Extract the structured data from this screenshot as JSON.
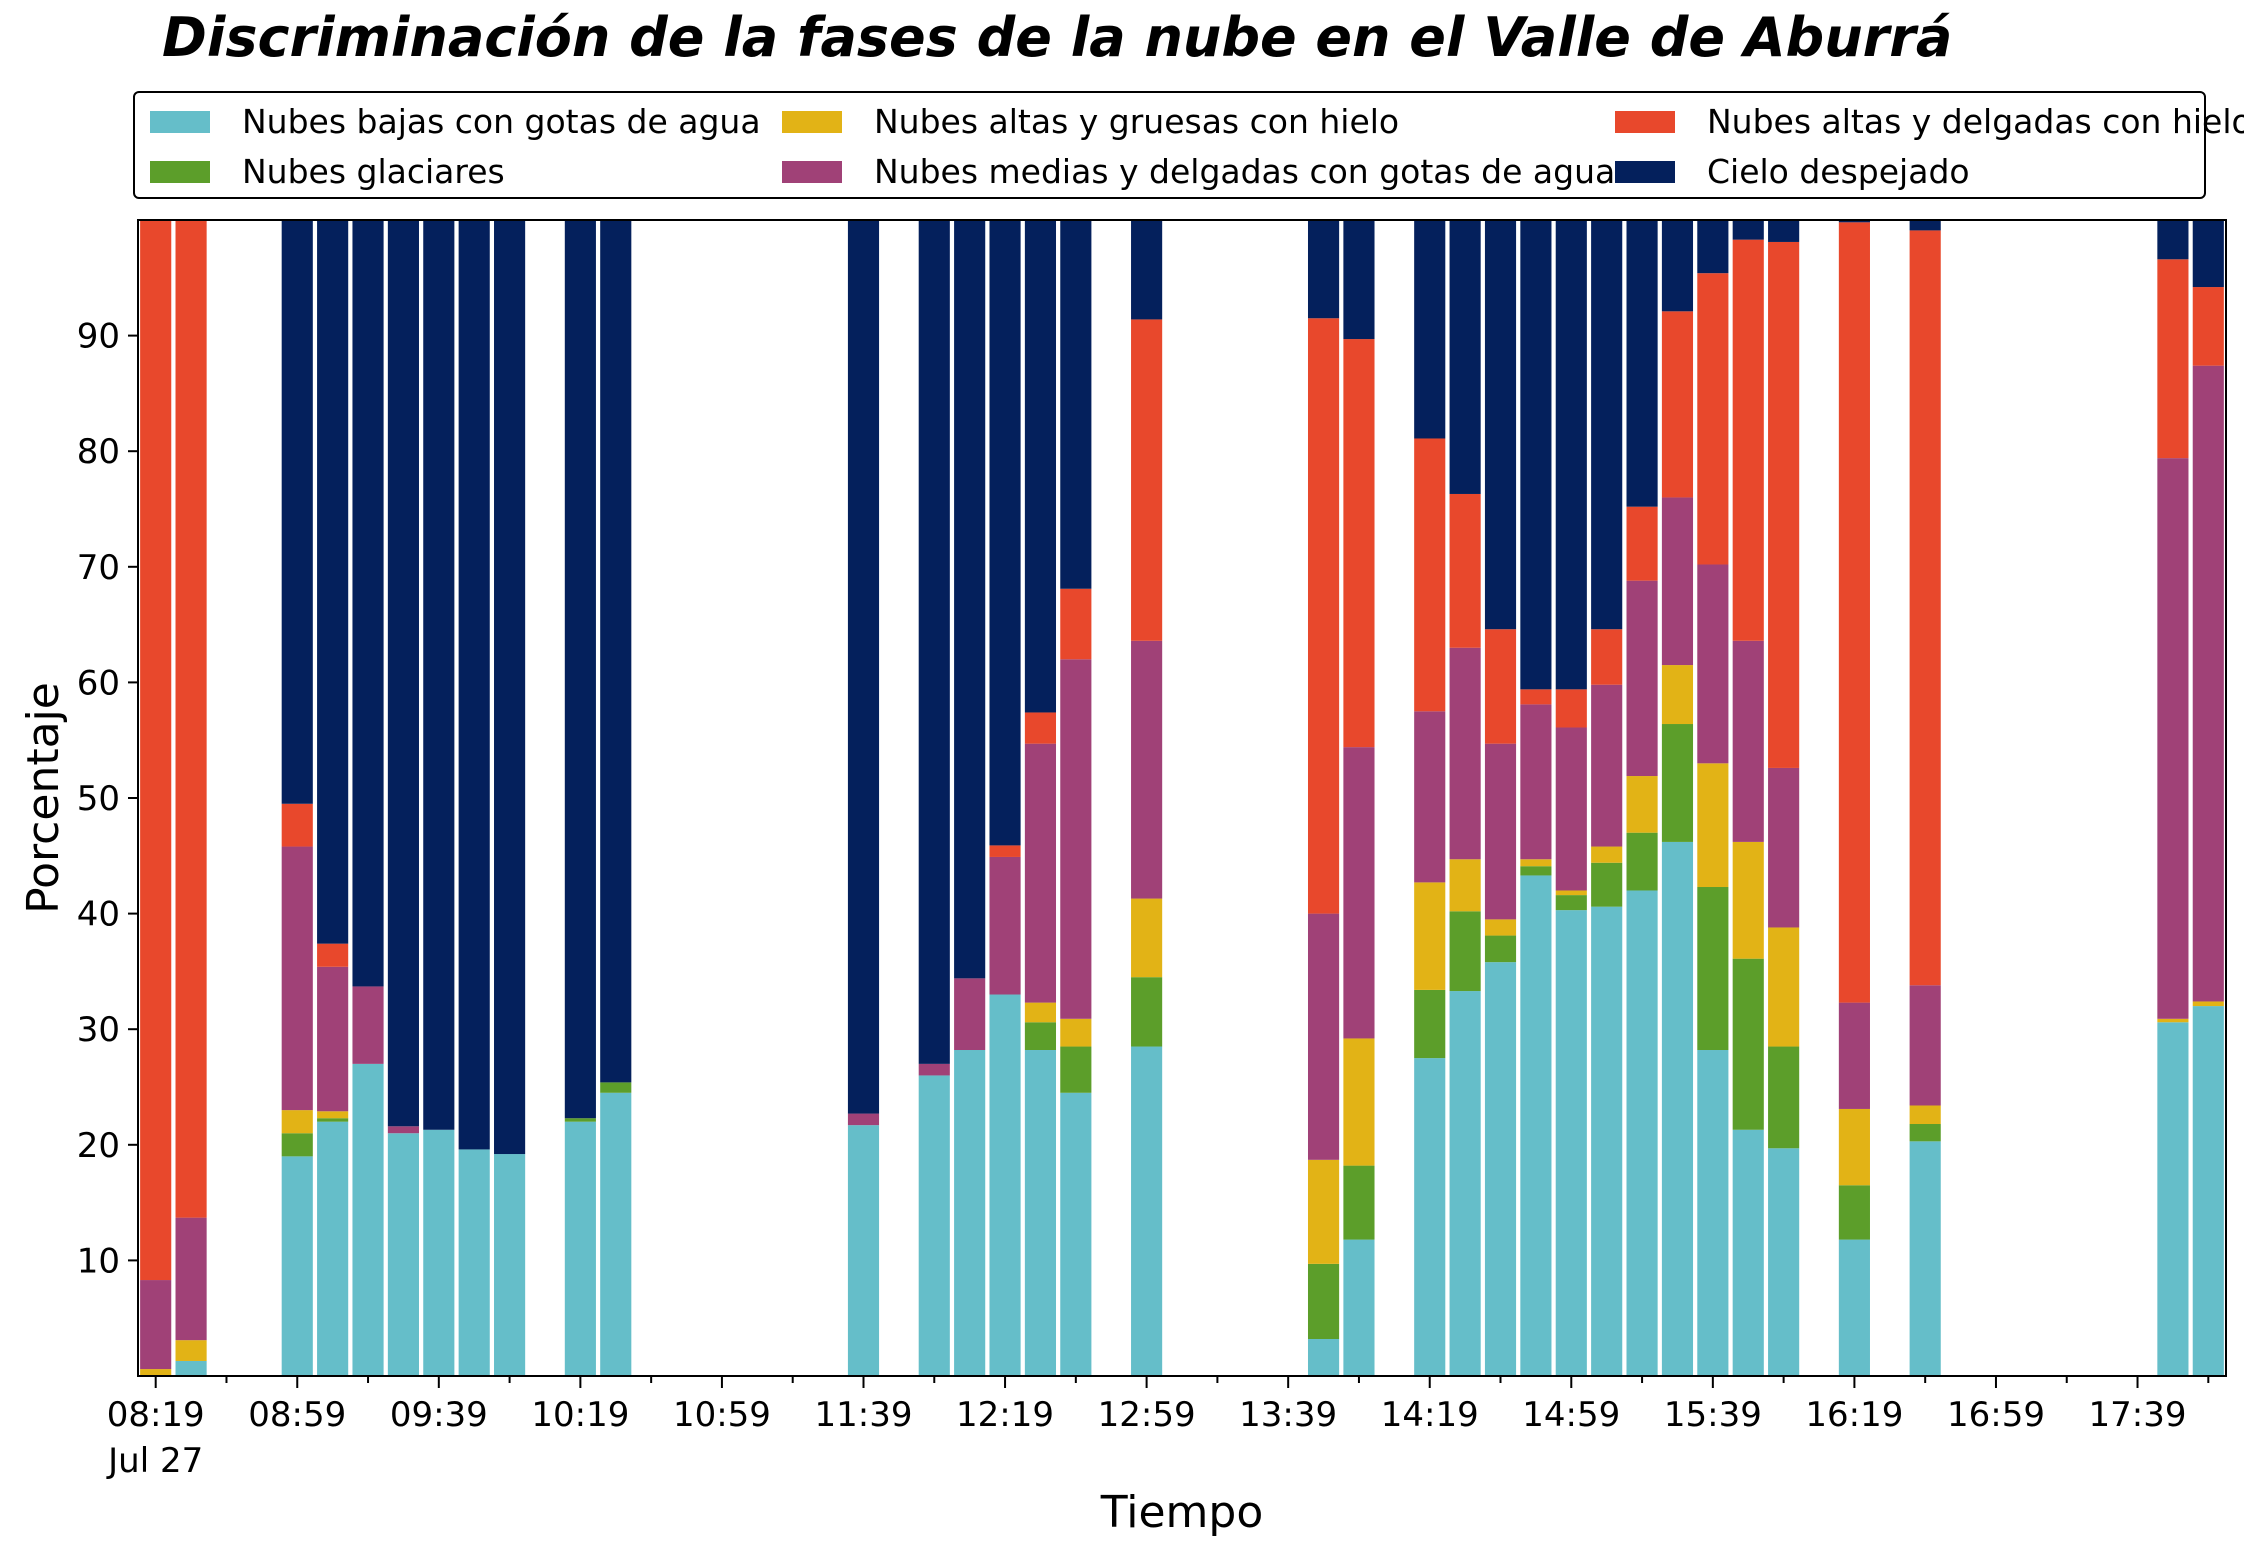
{
  "chart_data": {
    "type": "bar",
    "stacked": true,
    "title": "Discriminación de la fases de la nube en el Valle de Aburrá",
    "xlabel": "Tiempo",
    "ylabel": "Porcentaje",
    "ylim": [
      0,
      100
    ],
    "yticks": [
      10,
      20,
      30,
      40,
      50,
      60,
      70,
      80,
      90
    ],
    "x_start": "08:19",
    "x_end": "17:59",
    "bar_interval_minutes": 10,
    "xtick_labels": [
      "08:19",
      "08:59",
      "09:39",
      "10:19",
      "10:59",
      "11:39",
      "12:19",
      "12:59",
      "13:39",
      "14:19",
      "14:59",
      "15:39",
      "16:19",
      "16:59",
      "17:39"
    ],
    "xtick_sublabel": "Jul 27",
    "legend_position": "top",
    "grid": false,
    "categories": [
      "08:19",
      "08:29",
      "08:59",
      "09:09",
      "09:19",
      "09:29",
      "09:39",
      "09:49",
      "09:59",
      "10:19",
      "10:29",
      "11:39",
      "11:59",
      "12:09",
      "12:19",
      "12:29",
      "12:39",
      "12:59",
      "13:49",
      "13:59",
      "14:19",
      "14:29",
      "14:39",
      "14:49",
      "14:59",
      "15:09",
      "15:19",
      "15:29",
      "15:39",
      "15:49",
      "15:59",
      "16:19",
      "16:39",
      "17:49",
      "17:59"
    ],
    "series": [
      {
        "name": "Nubes bajas con gotas de agua",
        "color": "#65bec9",
        "values": [
          0,
          1.3,
          19,
          22,
          27,
          21,
          21.3,
          19.6,
          19.2,
          22,
          24.5,
          21.7,
          26,
          28.2,
          33,
          28.2,
          24.5,
          28.5,
          3.2,
          11.8,
          27.5,
          33.3,
          35.8,
          43.3,
          40.3,
          40.6,
          42,
          46.2,
          28.2,
          21.3,
          19.7,
          11.8,
          20.3,
          30.6,
          32
        ]
      },
      {
        "name": "Nubes glaciares",
        "color": "#5c9e2a",
        "values": [
          0,
          0,
          2,
          0.3,
          0,
          0,
          0,
          0,
          0,
          0.3,
          0.9,
          0,
          0,
          0,
          0,
          2.4,
          4,
          6,
          6.5,
          6.4,
          5.9,
          6.9,
          2.3,
          0.8,
          1.3,
          3.8,
          5,
          10.2,
          14.1,
          14.8,
          8.8,
          4.7,
          1.5,
          0,
          0
        ]
      },
      {
        "name": "Nubes altas y gruesas con hielo",
        "color": "#e2b316",
        "values": [
          0.6,
          1.8,
          2,
          0.6,
          0,
          0,
          0,
          0,
          0,
          0,
          0,
          0,
          0,
          0,
          0,
          1.7,
          2.4,
          6.8,
          9,
          11,
          9.3,
          4.5,
          1.4,
          0.6,
          0.4,
          1.4,
          4.9,
          5.1,
          10.7,
          10.1,
          10.3,
          6.6,
          1.6,
          0.3,
          0.4
        ]
      },
      {
        "name": "Nubes medias y delgadas con gotas de agua",
        "color": "#a04177",
        "values": [
          7.7,
          10.6,
          22.8,
          12.5,
          6.7,
          0.6,
          0,
          0,
          0,
          0,
          0,
          1,
          1,
          6.2,
          11.9,
          22.4,
          31.1,
          22.3,
          21.3,
          25.2,
          14.8,
          18.3,
          15.2,
          13.4,
          14.1,
          14,
          16.9,
          14.5,
          17.2,
          17.4,
          13.8,
          9.2,
          10.4,
          48.5,
          55
        ]
      },
      {
        "name": "Nubes altas y delgadas con hielo",
        "color": "#e8482c",
        "values": [
          91.7,
          86.3,
          3.7,
          2,
          0,
          0,
          0,
          0,
          0,
          0,
          0,
          0,
          0,
          0,
          1,
          2.7,
          6.1,
          27.8,
          51.5,
          35.3,
          23.6,
          13.3,
          9.9,
          1.3,
          3.3,
          4.8,
          6.4,
          16.1,
          25.2,
          34.7,
          45.5,
          67.5,
          65.3,
          17.2,
          6.8
        ]
      },
      {
        "name": "Cielo despejado",
        "color": "#04205c",
        "values": [
          0,
          0,
          50.5,
          62.6,
          66.3,
          78.4,
          78.7,
          80.4,
          80.8,
          77.7,
          74.6,
          77.3,
          73,
          65.6,
          54.1,
          42.6,
          31.9,
          8.6,
          8.5,
          10.3,
          18.9,
          23.7,
          35.4,
          40.6,
          40.6,
          35.4,
          24.8,
          7.9,
          4.6,
          1.7,
          1.9,
          0.2,
          0.9,
          3.4,
          5.8
        ]
      }
    ]
  }
}
